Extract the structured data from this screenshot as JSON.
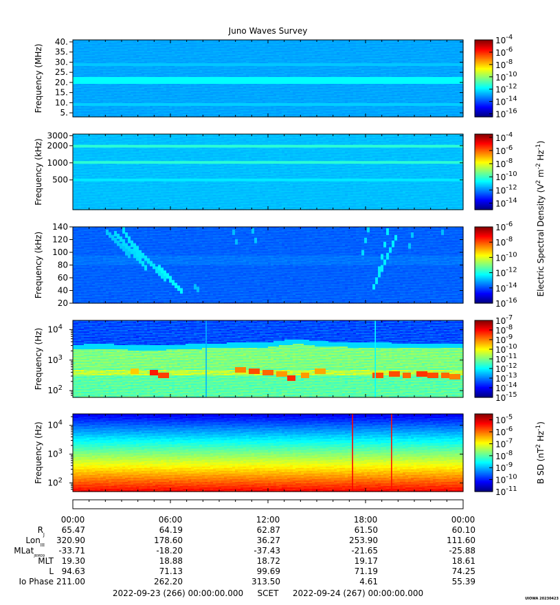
{
  "title": "Juno Waves Survey",
  "colors": {
    "frame": "#000000",
    "background": "#ffffff"
  },
  "chart_data": [
    {
      "type": "heatmap",
      "id": "hfr-high",
      "ylabel": "Frequency (MHz)",
      "yscale": "linear",
      "ylim": [
        3,
        41
      ],
      "yticks": [
        {
          "v": 5,
          "label": "5."
        },
        {
          "v": 10,
          "label": "10."
        },
        {
          "v": 15,
          "label": "15."
        },
        {
          "v": 20,
          "label": "20."
        },
        {
          "v": 25,
          "label": "25."
        },
        {
          "v": 30,
          "label": "30."
        },
        {
          "v": 35,
          "label": "35."
        },
        {
          "v": 40,
          "label": "40."
        }
      ],
      "colorbar": {
        "min_exp": -16.5,
        "max_exp": -4,
        "ticks": [
          {
            "exp": -4,
            "label": "-4"
          },
          {
            "exp": -6,
            "label": "-6"
          },
          {
            "exp": -8,
            "label": "-8"
          },
          {
            "exp": -10,
            "label": "-10"
          },
          {
            "exp": -12,
            "label": "-12"
          },
          {
            "exp": -14,
            "label": "-14"
          },
          {
            "exp": -16,
            "label": "-16"
          }
        ]
      },
      "base_level": -12.9,
      "bands": [
        {
          "y": 21,
          "width": 1.4,
          "level": -11.8
        },
        {
          "y": 9,
          "width": 0.6,
          "level": -12.4
        },
        {
          "y": 29,
          "width": 0.8,
          "level": -12.5
        }
      ]
    },
    {
      "type": "heatmap",
      "id": "hfr-low",
      "ylabel": "Frequency (kHz)",
      "yscale": "log",
      "ylim": [
        150,
        3200
      ],
      "yticks": [
        {
          "v": 500,
          "label": "500"
        },
        {
          "v": 1000,
          "label": "1000"
        },
        {
          "v": 2000,
          "label": "2000"
        },
        {
          "v": 3000,
          "label": "3000"
        }
      ],
      "colorbar": {
        "min_exp": -15,
        "max_exp": -3.5,
        "ticks": [
          {
            "exp": -4,
            "label": "-4"
          },
          {
            "exp": -6,
            "label": "-6"
          },
          {
            "exp": -8,
            "label": "-8"
          },
          {
            "exp": -10,
            "label": "-10"
          },
          {
            "exp": -12,
            "label": "-12"
          },
          {
            "exp": -14,
            "label": "-14"
          }
        ]
      },
      "base_level": -11.4,
      "bands": [
        {
          "y": 1000,
          "width": 60,
          "level": -10.2
        },
        {
          "y": 2000,
          "width": 120,
          "level": -10.2
        },
        {
          "y": 500,
          "width": 25,
          "level": -10.9
        }
      ]
    },
    {
      "type": "heatmap",
      "id": "lfr-high",
      "ylabel": "Frequency (kHz)",
      "yscale": "linear",
      "ylim": [
        20,
        140
      ],
      "yticks": [
        {
          "v": 20,
          "label": "20"
        },
        {
          "v": 40,
          "label": "40"
        },
        {
          "v": 60,
          "label": "60"
        },
        {
          "v": 80,
          "label": "80"
        },
        {
          "v": 100,
          "label": "100"
        },
        {
          "v": 120,
          "label": "120"
        },
        {
          "v": 140,
          "label": "140"
        }
      ],
      "colorbar": {
        "min_exp": -16,
        "max_exp": -6,
        "ticks": [
          {
            "exp": -6,
            "label": "-6"
          },
          {
            "exp": -8,
            "label": "-8"
          },
          {
            "exp": -10,
            "label": "-10"
          },
          {
            "exp": -12,
            "label": "-12"
          },
          {
            "exp": -14,
            "label": "-14"
          },
          {
            "exp": -16,
            "label": "-16"
          }
        ]
      },
      "base_level": -13.8,
      "bursts": [
        {
          "x0": 2.0,
          "y0": 135,
          "x1": 3.5,
          "y1": 95,
          "level": -12.8
        },
        {
          "x0": 2.6,
          "y0": 130,
          "x1": 4.2,
          "y1": 85,
          "level": -12.6
        },
        {
          "x0": 3.0,
          "y0": 140,
          "x1": 4.6,
          "y1": 70,
          "level": -12.5
        },
        {
          "x0": 3.4,
          "y0": 120,
          "x1": 5.8,
          "y1": 55,
          "level": -12.5
        },
        {
          "x0": 5.2,
          "y0": 80,
          "x1": 6.8,
          "y1": 35,
          "level": -12.3
        },
        {
          "x0": 7.4,
          "y0": 50,
          "x1": 7.8,
          "y1": 38,
          "level": -12.9
        },
        {
          "x0": 9.8,
          "y0": 138,
          "x1": 10.2,
          "y1": 105,
          "level": -12.9
        },
        {
          "x0": 11.0,
          "y0": 140,
          "x1": 11.4,
          "y1": 105,
          "level": -12.8
        },
        {
          "x0": 18.2,
          "y0": 140,
          "x1": 17.7,
          "y1": 85,
          "level": -12.6
        },
        {
          "x0": 19.4,
          "y0": 138,
          "x1": 18.6,
          "y1": 45,
          "level": -12.4
        },
        {
          "x0": 19.9,
          "y0": 125,
          "x1": 18.4,
          "y1": 40,
          "level": -12.4
        },
        {
          "x0": 21.0,
          "y0": 140,
          "x1": 20.6,
          "y1": 100,
          "level": -12.8
        },
        {
          "x0": 22.8,
          "y0": 140,
          "x1": 22.6,
          "y1": 115,
          "level": -12.9
        }
      ]
    },
    {
      "type": "heatmap",
      "id": "lfr-low",
      "ylabel": "Frequency (Hz)",
      "yscale": "log",
      "ylim": [
        60,
        20000
      ],
      "yticks": [
        {
          "v": 100,
          "label": "10",
          "exp": "2"
        },
        {
          "v": 1000,
          "label": "10",
          "exp": "3"
        },
        {
          "v": 10000,
          "label": "10",
          "exp": "4"
        }
      ],
      "minor_ticks": true,
      "colorbar": {
        "min_exp": -15,
        "max_exp": -7,
        "ticks": [
          {
            "exp": -7,
            "label": "-7"
          },
          {
            "exp": -8,
            "label": "-8"
          },
          {
            "exp": -9,
            "label": "-9"
          },
          {
            "exp": -10,
            "label": "-10"
          },
          {
            "exp": -11,
            "label": "-11"
          },
          {
            "exp": -12,
            "label": "-12"
          },
          {
            "exp": -13,
            "label": "-13"
          },
          {
            "exp": -14,
            "label": "-14"
          },
          {
            "exp": -15,
            "label": "-15"
          }
        ]
      },
      "emission_upper_hz": [
        2800,
        2900,
        2600,
        2700,
        3000,
        3200,
        3300,
        3900,
        4200,
        3600,
        3300,
        3200,
        3000,
        3000
      ],
      "emission_hours": [
        0,
        2,
        4,
        6,
        8,
        10,
        12,
        13,
        14,
        15,
        17,
        19,
        21,
        24
      ],
      "intense_band_hz": [
        330,
        480
      ],
      "hot_spots": [
        {
          "x": 3.8,
          "y": 420,
          "level": -9.6
        },
        {
          "x": 5.0,
          "y": 400,
          "level": -8.2
        },
        {
          "x": 5.6,
          "y": 330,
          "level": -8.5
        },
        {
          "x": 10.3,
          "y": 460,
          "level": -9.0
        },
        {
          "x": 11.2,
          "y": 420,
          "level": -8.6
        },
        {
          "x": 12.0,
          "y": 380,
          "level": -8.8
        },
        {
          "x": 12.8,
          "y": 340,
          "level": -9.2
        },
        {
          "x": 13.4,
          "y": 260,
          "level": -8.3
        },
        {
          "x": 14.3,
          "y": 300,
          "level": -9.2
        },
        {
          "x": 15.2,
          "y": 430,
          "level": -9.3
        },
        {
          "x": 18.8,
          "y": 300,
          "level": -8.6
        },
        {
          "x": 19.8,
          "y": 360,
          "level": -8.6
        },
        {
          "x": 20.5,
          "y": 330,
          "level": -8.8
        },
        {
          "x": 21.5,
          "y": 350,
          "level": -8.4
        },
        {
          "x": 22.1,
          "y": 300,
          "level": -8.6
        },
        {
          "x": 22.9,
          "y": 320,
          "level": -8.8
        },
        {
          "x": 23.5,
          "y": 290,
          "level": -9.0
        }
      ],
      "spikes": [
        {
          "x": 18.6,
          "level": -12.0
        },
        {
          "x": 8.2,
          "level": -12.6
        }
      ]
    },
    {
      "type": "heatmap",
      "id": "mag",
      "ylabel": "Frequency (Hz)",
      "yscale": "log",
      "ylim": [
        50,
        25000
      ],
      "yticks": [
        {
          "v": 100,
          "label": "10",
          "exp": "2"
        },
        {
          "v": 1000,
          "label": "10",
          "exp": "3"
        },
        {
          "v": 10000,
          "label": "10",
          "exp": "4"
        }
      ],
      "minor_ticks": true,
      "colorbar": {
        "min_exp": -11,
        "max_exp": -4.5,
        "ticks": [
          {
            "exp": -5,
            "label": "-5"
          },
          {
            "exp": -6,
            "label": "-6"
          },
          {
            "exp": -7,
            "label": "-7"
          },
          {
            "exp": -8,
            "label": "-8"
          },
          {
            "exp": -9,
            "label": "-9"
          },
          {
            "exp": -10,
            "label": "-10"
          },
          {
            "exp": -11,
            "label": "-11"
          }
        ]
      },
      "spikes": [
        {
          "x": 17.2,
          "level": -5.3
        },
        {
          "x": 19.6,
          "level": -5.4
        }
      ]
    }
  ],
  "colorbar_labels": {
    "electric": {
      "pre": "Electric Spectral Density (V",
      "sup1": "2",
      "mid": " m",
      "sup2": "-2",
      "mid2": " Hz",
      "sup3": "-1",
      "post": ")"
    },
    "magnetic": {
      "pre": "B SD (nT",
      "sup1": "2",
      "mid": " Hz",
      "sup2": "-1",
      "post": ")"
    }
  },
  "colorbar_base": "10",
  "time_axis": {
    "hours": [
      0,
      6,
      12,
      18,
      24
    ],
    "labels": [
      "00:00",
      "06:00",
      "12:00",
      "18:00",
      "00:00"
    ]
  },
  "ephemeris": {
    "rows": [
      {
        "name": "R",
        "sub": "J",
        "values": [
          "65.47",
          "64.19",
          "62.87",
          "61.50",
          "60.10"
        ]
      },
      {
        "name": "Lon",
        "sub": "III",
        "values": [
          "320.90",
          "178.60",
          "36.27",
          "253.90",
          "111.60"
        ]
      },
      {
        "name": "MLat",
        "sub": "JRM09",
        "values": [
          "-33.71",
          "-18.20",
          "-37.43",
          "-21.65",
          "-25.88"
        ]
      },
      {
        "name": "MLT",
        "sub": "",
        "values": [
          "19.30",
          "18.88",
          "18.72",
          "19.17",
          "18.61"
        ]
      },
      {
        "name": "L",
        "sub": "",
        "values": [
          "94.63",
          "71.13",
          "99.69",
          "71.19",
          "74.25"
        ]
      },
      {
        "name": "Io Phase",
        "sub": "",
        "values": [
          "211.00",
          "262.20",
          "313.50",
          "4.61",
          "55.39"
        ]
      }
    ]
  },
  "footer": {
    "start": "2022-09-23 (266) 00:00:00.000",
    "scet": "SCET",
    "end": "2022-09-24 (267) 00:00:00.000",
    "credit": "UIOWA 20230423"
  }
}
